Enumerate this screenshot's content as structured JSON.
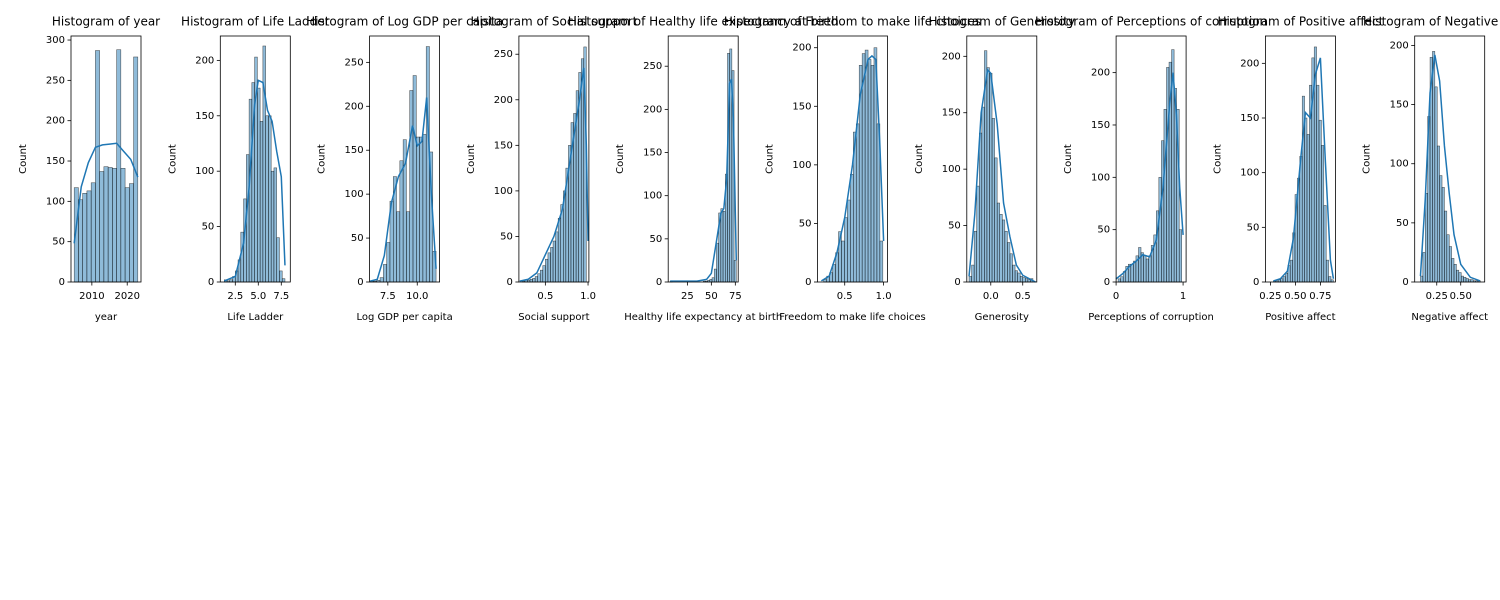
{
  "chart_data": [
    {
      "type": "histogram",
      "title": "Histogram of year",
      "xlabel": "year",
      "ylabel": "Count",
      "color": "#1f77b4",
      "bins": [
        2005,
        2006.2,
        2007.4,
        2008.6,
        2009.8,
        2011,
        2012.2,
        2013.4,
        2014.6,
        2015.8,
        2017,
        2018.2,
        2019.4,
        2020.6,
        2021.8,
        2023
      ],
      "counts": [
        117,
        102,
        110,
        113,
        123,
        287,
        137,
        143,
        142,
        141,
        288,
        141,
        117,
        122,
        279
      ],
      "kde_x": [
        2005,
        2007,
        2009,
        2011,
        2013,
        2015,
        2017,
        2019,
        2021,
        2023
      ],
      "kde_y": [
        48,
        118,
        148,
        167,
        170,
        171,
        172,
        162,
        152,
        130
      ],
      "xlim": [
        2004.1,
        2023.9
      ],
      "xticks": [
        2010,
        2020
      ],
      "ylim": [
        0,
        305
      ],
      "yticks": [
        0,
        50,
        100,
        150,
        200,
        250,
        300
      ]
    },
    {
      "type": "histogram",
      "title": "Histogram of Life Ladder",
      "xlabel": "Life Ladder",
      "ylabel": "Count",
      "color": "#1f77b4",
      "bins": [
        1.3,
        1.6,
        1.9,
        2.2,
        2.5,
        2.8,
        3.1,
        3.4,
        3.7,
        4.0,
        4.3,
        4.6,
        4.9,
        5.2,
        5.5,
        5.8,
        6.1,
        6.4,
        6.7,
        7.0,
        7.3,
        7.6,
        7.9
      ],
      "counts": [
        2,
        1,
        2,
        5,
        10,
        20,
        45,
        75,
        115,
        165,
        180,
        203,
        175,
        145,
        213,
        150,
        150,
        100,
        103,
        40,
        10,
        3
      ],
      "kde_x": [
        1.3,
        2.5,
        3.4,
        4.0,
        4.6,
        5.0,
        5.5,
        6.0,
        6.5,
        7.0,
        7.5,
        7.9
      ],
      "kde_y": [
        1,
        5,
        35,
        85,
        160,
        182,
        180,
        155,
        145,
        118,
        95,
        15
      ],
      "xlim": [
        0.87,
        8.48
      ],
      "xticks": [
        2.5,
        {
          "value": 5,
          "label": "5.0"
        },
        7.5
      ],
      "ylim": [
        0,
        222
      ],
      "yticks": [
        0,
        50,
        100,
        150,
        200
      ]
    },
    {
      "type": "histogram",
      "title": "Histogram of Log GDP per capita",
      "xlabel": "Log GDP per capita",
      "ylabel": "Count",
      "color": "#1f77b4",
      "bins": [
        6.0,
        6.28,
        6.56,
        6.84,
        7.12,
        7.4,
        7.68,
        7.96,
        8.24,
        8.52,
        8.8,
        9.08,
        9.36,
        9.64,
        9.92,
        10.2,
        10.48,
        10.76,
        11.04,
        11.32,
        11.6
      ],
      "counts": [
        1,
        1,
        2,
        5,
        20,
        45,
        92,
        120,
        80,
        138,
        162,
        80,
        218,
        235,
        165,
        165,
        168,
        268,
        148,
        35
      ],
      "kde_x": [
        6.0,
        6.6,
        7.2,
        7.8,
        8.4,
        9.0,
        9.6,
        10.0,
        10.4,
        10.8,
        11.2,
        11.6
      ],
      "kde_y": [
        1,
        3,
        30,
        90,
        120,
        135,
        178,
        155,
        160,
        210,
        100,
        15
      ],
      "xlim": [
        5.95,
        11.9
      ],
      "xticks": [
        7.5,
        {
          "value": 10,
          "label": "10.0"
        }
      ],
      "ylim": [
        0,
        280
      ],
      "yticks": [
        0,
        50,
        100,
        150,
        200,
        250
      ]
    },
    {
      "type": "histogram",
      "title": "Histogram of Social support",
      "xlabel": "Social support",
      "ylabel": "Count",
      "color": "#1f77b4",
      "bins": [
        0.23,
        0.26,
        0.29,
        0.32,
        0.35,
        0.38,
        0.41,
        0.44,
        0.47,
        0.5,
        0.53,
        0.56,
        0.59,
        0.62,
        0.65,
        0.68,
        0.71,
        0.74,
        0.77,
        0.8,
        0.83,
        0.86,
        0.89,
        0.92,
        0.95,
        0.98
      ],
      "counts": [
        1,
        2,
        2,
        3,
        4,
        6,
        9,
        13,
        18,
        25,
        32,
        38,
        45,
        55,
        70,
        85,
        100,
        125,
        150,
        175,
        185,
        210,
        230,
        245,
        258
      ],
      "kde_x": [
        0.2,
        0.3,
        0.4,
        0.5,
        0.6,
        0.7,
        0.8,
        0.9,
        0.95,
        0.98,
        1.0
      ],
      "kde_y": [
        1,
        3,
        10,
        30,
        50,
        80,
        140,
        200,
        235,
        150,
        45
      ],
      "xlim": [
        0.19,
        1.01
      ],
      "xticks": [
        0.5,
        {
          "value": 1,
          "label": "1.0"
        }
      ],
      "ylim": [
        0,
        270
      ],
      "yticks": [
        0,
        50,
        100,
        150,
        200,
        250
      ]
    },
    {
      "type": "histogram",
      "title": "Histogram of Healthy life expectancy at birth",
      "xlabel": "Healthy life expectancy at birth",
      "ylabel": "Count",
      "color": "#1f77b4",
      "bins": [
        7,
        9.3,
        11.6,
        13.9,
        16.2,
        18.5,
        20.8,
        23.1,
        25.4,
        27.7,
        30,
        32.3,
        34.6,
        36.9,
        39.2,
        41.5,
        43.8,
        46.1,
        48.4,
        50.7,
        53,
        55.3,
        57.6,
        59.9,
        62.2,
        64.5,
        66.8,
        69.1,
        71.4,
        73.7,
        76
      ],
      "counts": [
        1,
        0,
        0,
        0,
        0,
        0,
        0,
        0,
        0,
        0,
        0,
        0,
        0,
        0,
        0,
        1,
        1,
        2,
        3,
        5,
        15,
        45,
        80,
        85,
        82,
        125,
        265,
        270,
        245,
        25
      ],
      "kde_x": [
        7,
        20,
        35,
        45,
        50,
        55,
        60,
        63,
        66,
        69,
        71,
        73,
        76
      ],
      "kde_y": [
        1,
        1,
        1,
        3,
        10,
        45,
        80,
        85,
        120,
        230,
        235,
        190,
        25
      ],
      "xlim": [
        5,
        78
      ],
      "xticks": [
        25,
        50,
        75
      ],
      "ylim": [
        0,
        285
      ],
      "yticks": [
        0,
        50,
        100,
        150,
        200,
        250
      ]
    },
    {
      "type": "histogram",
      "title": "Histogram of Freedom to make life choices",
      "xlabel": "Freedom to make life choices",
      "ylabel": "Count",
      "color": "#1f77b4",
      "bins": [
        0.23,
        0.268,
        0.306,
        0.344,
        0.382,
        0.42,
        0.458,
        0.496,
        0.534,
        0.572,
        0.61,
        0.648,
        0.686,
        0.724,
        0.762,
        0.8,
        0.838,
        0.876,
        0.914,
        0.952,
        0.99
      ],
      "counts": [
        2,
        5,
        8,
        15,
        25,
        43,
        35,
        55,
        70,
        92,
        128,
        135,
        185,
        195,
        198,
        190,
        185,
        200,
        135,
        35
      ],
      "kde_x": [
        0.2,
        0.3,
        0.4,
        0.5,
        0.6,
        0.7,
        0.8,
        0.85,
        0.9,
        0.95,
        1.0
      ],
      "kde_y": [
        1,
        5,
        25,
        55,
        100,
        160,
        190,
        193,
        190,
        120,
        35
      ],
      "xlim": [
        0.15,
        1.05
      ],
      "xticks": [
        0.5,
        {
          "value": 1,
          "label": "1.0"
        }
      ],
      "ylim": [
        0,
        210
      ],
      "yticks": [
        0,
        50,
        100,
        150,
        200
      ]
    },
    {
      "type": "histogram",
      "title": "Histogram of Generosity",
      "xlabel": "Generosity",
      "ylabel": "Count",
      "color": "#1f77b4",
      "bins": [
        -0.34,
        -0.3,
        -0.26,
        -0.22,
        -0.18,
        -0.14,
        -0.1,
        -0.06,
        -0.02,
        0.02,
        0.06,
        0.1,
        0.14,
        0.18,
        0.22,
        0.26,
        0.3,
        0.34,
        0.38,
        0.42,
        0.46,
        0.5,
        0.54,
        0.58,
        0.62,
        0.66
      ],
      "counts": [
        5,
        15,
        45,
        85,
        132,
        155,
        205,
        190,
        185,
        145,
        110,
        70,
        60,
        55,
        45,
        35,
        25,
        15,
        10,
        8,
        5,
        4,
        3,
        2,
        3
      ],
      "kde_x": [
        -0.34,
        -0.25,
        -0.15,
        -0.05,
        0.0,
        0.1,
        0.2,
        0.3,
        0.4,
        0.5,
        0.6,
        0.7
      ],
      "kde_y": [
        5,
        60,
        150,
        188,
        185,
        140,
        70,
        40,
        15,
        6,
        3,
        0
      ],
      "xlim": [
        -0.375,
        0.72
      ],
      "xticks": [
        {
          "value": 0,
          "label": "0.0"
        },
        0.5
      ],
      "ylim": [
        0,
        218
      ],
      "yticks": [
        0,
        50,
        100,
        150,
        200
      ]
    },
    {
      "type": "histogram",
      "title": "Histogram of Perceptions of corruption",
      "xlabel": "Perceptions of corruption",
      "ylabel": "Count",
      "color": "#1f77b4",
      "bins": [
        0.03,
        0.068,
        0.106,
        0.144,
        0.182,
        0.22,
        0.258,
        0.296,
        0.334,
        0.372,
        0.41,
        0.448,
        0.486,
        0.524,
        0.562,
        0.6,
        0.638,
        0.676,
        0.714,
        0.752,
        0.79,
        0.828,
        0.866,
        0.904,
        0.942,
        0.98
      ],
      "counts": [
        3,
        5,
        10,
        15,
        17,
        17,
        20,
        25,
        33,
        28,
        25,
        22,
        25,
        35,
        45,
        68,
        100,
        135,
        165,
        205,
        210,
        222,
        185,
        165,
        50
      ],
      "kde_x": [
        0.0,
        0.1,
        0.2,
        0.3,
        0.4,
        0.5,
        0.6,
        0.7,
        0.8,
        0.85,
        0.9,
        0.95,
        1.0
      ],
      "kde_y": [
        3,
        8,
        15,
        20,
        26,
        24,
        40,
        90,
        170,
        200,
        160,
        90,
        45
      ],
      "xlim": [
        0,
        1.045
      ],
      "xticks": [
        0,
        1
      ],
      "ylim": [
        0,
        235
      ],
      "yticks": [
        0,
        50,
        100,
        150,
        200
      ]
    },
    {
      "type": "histogram",
      "title": "Histogram of Positive affect",
      "xlabel": "Positive affect",
      "ylabel": "Count",
      "color": "#1f77b4",
      "bins": [
        0.28,
        0.304,
        0.328,
        0.352,
        0.376,
        0.4,
        0.424,
        0.448,
        0.472,
        0.496,
        0.52,
        0.544,
        0.568,
        0.592,
        0.616,
        0.64,
        0.664,
        0.688,
        0.712,
        0.736,
        0.76,
        0.784,
        0.808,
        0.832,
        0.856,
        0.88
      ],
      "counts": [
        1,
        1,
        2,
        3,
        5,
        8,
        15,
        20,
        45,
        80,
        95,
        115,
        170,
        150,
        135,
        180,
        205,
        215,
        180,
        148,
        125,
        70,
        20,
        5,
        2
      ],
      "kde_x": [
        0.28,
        0.35,
        0.42,
        0.48,
        0.55,
        0.6,
        0.65,
        0.7,
        0.75,
        0.8,
        0.85,
        0.88
      ],
      "kde_y": [
        1,
        3,
        10,
        40,
        110,
        155,
        150,
        190,
        205,
        110,
        20,
        3
      ],
      "xlim": [
        0.2,
        0.9
      ],
      "xticks": [
        0.25,
        {
          "value": 0.5,
          "label": "0.50"
        },
        0.75
      ],
      "ylim": [
        0,
        225
      ],
      "yticks": [
        0,
        50,
        100,
        150,
        200
      ]
    },
    {
      "type": "histogram",
      "title": "Histogram of Negative affect",
      "xlabel": "Negative affect",
      "ylabel": "Count",
      "color": "#1f77b4",
      "bins": [
        0.08,
        0.105,
        0.13,
        0.155,
        0.18,
        0.205,
        0.23,
        0.255,
        0.28,
        0.305,
        0.33,
        0.355,
        0.38,
        0.405,
        0.43,
        0.455,
        0.48,
        0.505,
        0.53,
        0.555,
        0.58,
        0.605,
        0.63,
        0.655,
        0.68,
        0.705
      ],
      "counts": [
        5,
        25,
        75,
        140,
        190,
        195,
        165,
        115,
        90,
        80,
        60,
        40,
        30,
        20,
        15,
        10,
        8,
        5,
        4,
        3,
        2,
        2,
        1,
        1,
        1
      ],
      "kde_x": [
        0.08,
        0.13,
        0.18,
        0.23,
        0.28,
        0.33,
        0.38,
        0.43,
        0.5,
        0.6,
        0.7
      ],
      "kde_y": [
        5,
        70,
        160,
        192,
        170,
        115,
        75,
        40,
        15,
        4,
        1
      ],
      "xlim": [
        0.02,
        0.75
      ],
      "xticks": [
        0.25,
        {
          "value": 0.5,
          "label": "0.50"
        }
      ],
      "ylim": [
        0,
        208
      ],
      "yticks": [
        0,
        50,
        100,
        150,
        200
      ]
    }
  ]
}
